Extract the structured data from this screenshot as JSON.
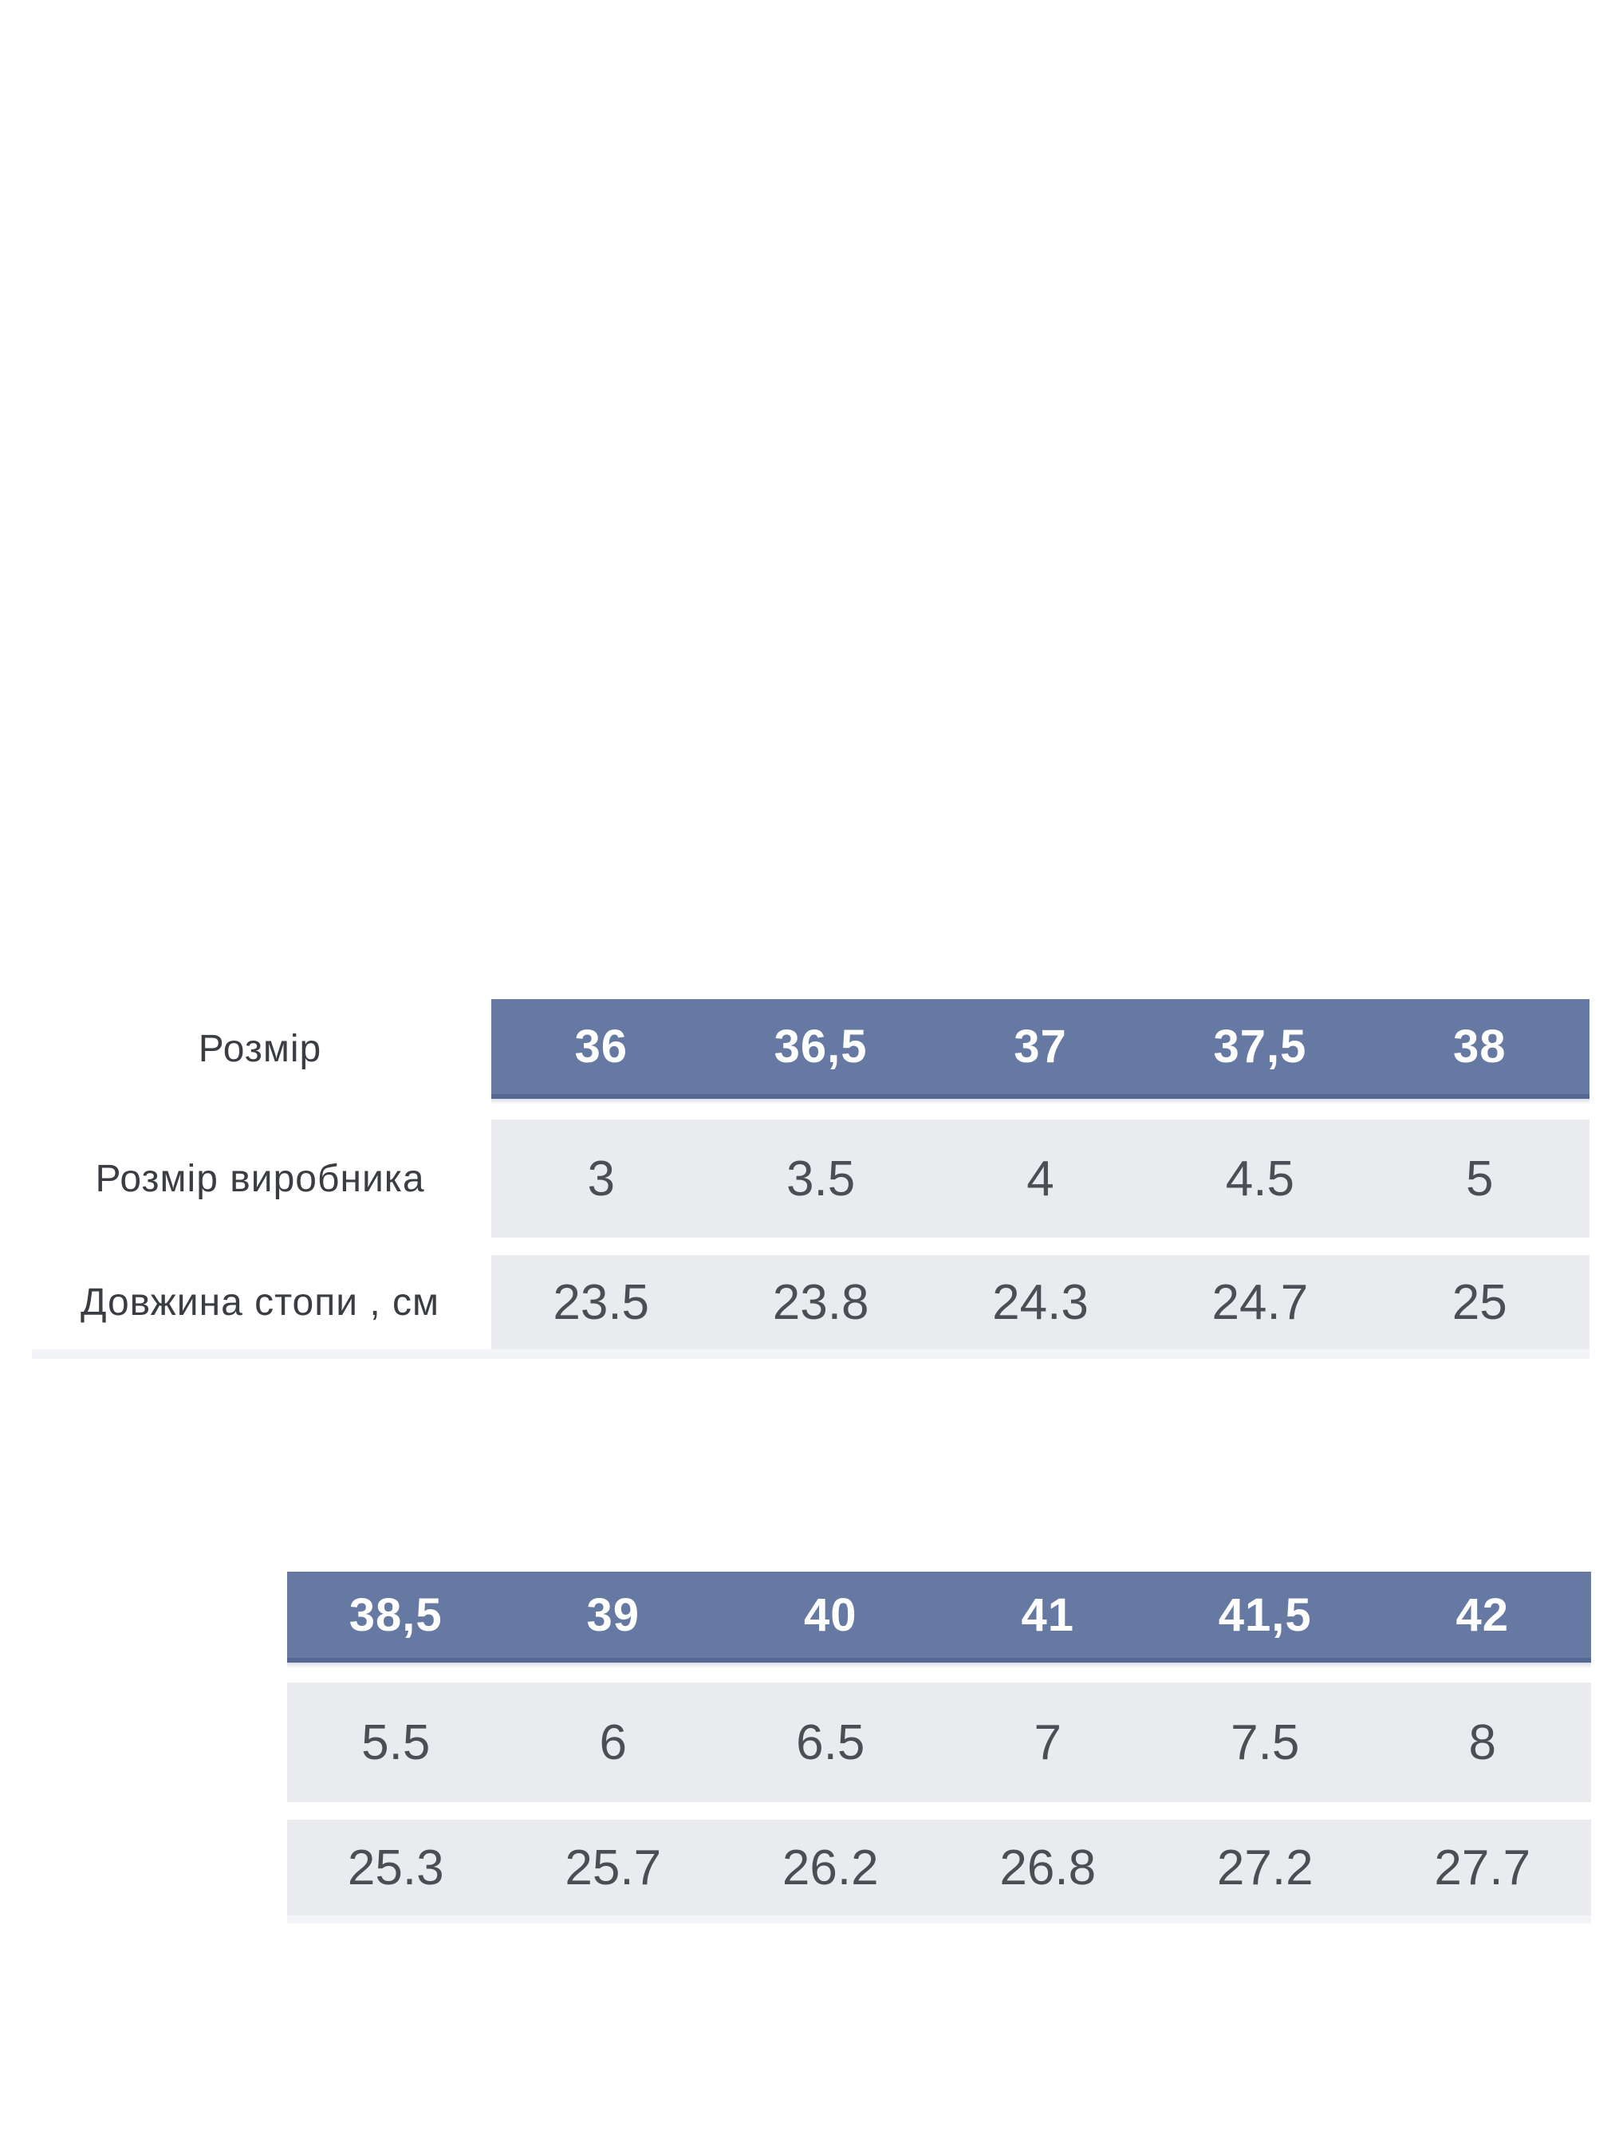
{
  "colors": {
    "header_blue": "#6579a2",
    "header_bottom_edge": "#51648f",
    "row_gray": "#e9ebee",
    "header_text": "#ffffff",
    "data_text": "#4b4e54",
    "label_text": "#3a3d42",
    "page_background": "#ffffff"
  },
  "table1": {
    "row_labels": [
      "Розмір",
      "Розмір виробника",
      "Довжина стопи , см"
    ],
    "header": [
      "36",
      "36,5",
      "37",
      "37,5",
      "38"
    ],
    "rows": [
      {
        "name": "manufacturer-size",
        "values": [
          "3",
          "3.5",
          "4",
          "4.5",
          "5"
        ]
      },
      {
        "name": "foot-length-cm",
        "values": [
          "23.5",
          "23.8",
          "24.3",
          "24.7",
          "25"
        ]
      }
    ]
  },
  "table2": {
    "header": [
      "38,5",
      "39",
      "40",
      "41",
      "41,5",
      "42"
    ],
    "rows": [
      {
        "name": "manufacturer-size",
        "values": [
          "5.5",
          "6",
          "6.5",
          "7",
          "7.5",
          "8"
        ]
      },
      {
        "name": "foot-length-cm",
        "values": [
          "25.3",
          "25.7",
          "26.2",
          "26.8",
          "27.2",
          "27.7"
        ]
      }
    ]
  }
}
